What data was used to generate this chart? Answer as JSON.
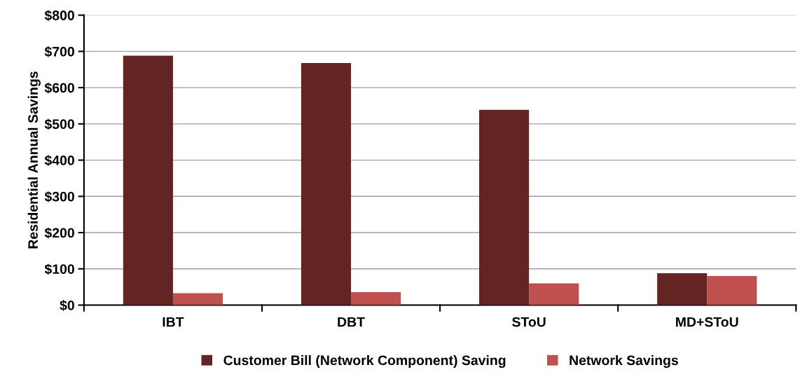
{
  "chart_data": {
    "type": "bar",
    "ylabel": "Residential Annual Savings",
    "categories": [
      "IBT",
      "DBT",
      "SToU",
      "MD+SToU"
    ],
    "series": [
      {
        "name": "Customer Bill (Network Component) Saving",
        "color": "#632523",
        "values": [
          688,
          668,
          539,
          88
        ]
      },
      {
        "name": "Network Savings",
        "color": "#c0504d",
        "values": [
          33,
          36,
          60,
          80
        ]
      }
    ],
    "ylim": [
      0,
      800
    ],
    "yticks": [
      {
        "value": 0,
        "label": "$0"
      },
      {
        "value": 100,
        "label": "$100"
      },
      {
        "value": 200,
        "label": "$200"
      },
      {
        "value": 300,
        "label": "$300"
      },
      {
        "value": 400,
        "label": "$400"
      },
      {
        "value": 500,
        "label": "$500"
      },
      {
        "value": 600,
        "label": "$600"
      },
      {
        "value": 700,
        "label": "$700"
      },
      {
        "value": 800,
        "label": "$800"
      }
    ],
    "grid": "y",
    "legend": "bottom"
  }
}
